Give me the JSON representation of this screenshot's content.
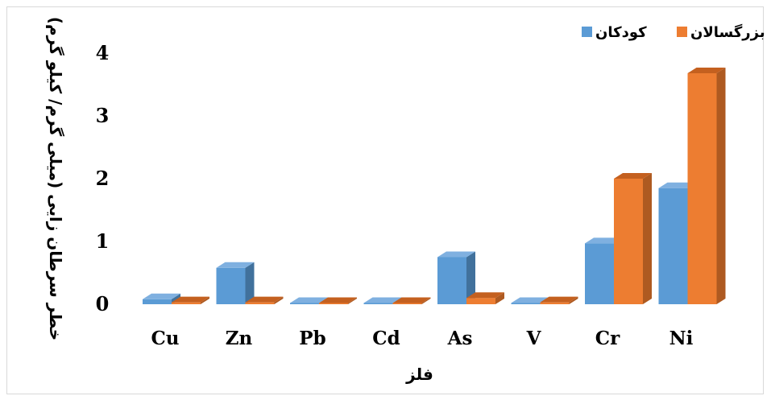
{
  "chart_data": {
    "type": "bar",
    "title": "",
    "xlabel": "فلز",
    "ylabel": "خطر سرطان زایی (میلی گرم/ کیلو گرم)",
    "categories": [
      "Cu",
      "Zn",
      "Pb",
      "Cd",
      "As",
      "V",
      "Cr",
      "Ni"
    ],
    "yticks": [
      "0",
      "1",
      "2",
      "3",
      "4"
    ],
    "ylim": [
      0,
      4
    ],
    "grid": false,
    "legend_position": "top-right",
    "series": [
      {
        "name": "کودکان",
        "color": "#5b9bd5",
        "side": "#41719c",
        "top": "#7fb0e0",
        "values": [
          0.08,
          0.58,
          0.0,
          0.0,
          0.75,
          0.0,
          0.97,
          1.85
        ]
      },
      {
        "name": "بزرگسالان",
        "color": "#ed7d31",
        "side": "#ae5a21",
        "top": "#c4601f",
        "values": [
          0.03,
          0.03,
          0.0,
          0.0,
          0.1,
          0.03,
          2.0,
          3.68
        ]
      }
    ]
  }
}
